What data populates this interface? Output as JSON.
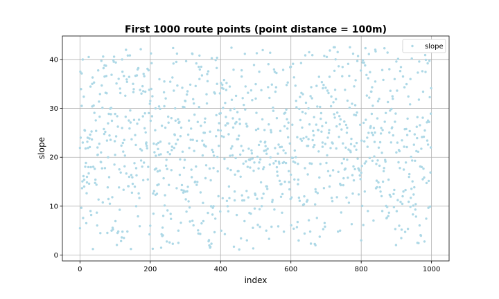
{
  "chart_data": {
    "type": "scatter",
    "title": "First 1000 route points (point distance = 100m)",
    "xlabel": "index",
    "ylabel": "slope",
    "xlim": [
      -50,
      1050
    ],
    "ylim": [
      -1.2,
      44.8
    ],
    "xticks": [
      0,
      200,
      400,
      600,
      800,
      1000
    ],
    "yticks": [
      0,
      10,
      20,
      30,
      40
    ],
    "grid": true,
    "legend": {
      "placement": "top-right",
      "entries": [
        "slope"
      ]
    },
    "series": [
      {
        "name": "slope",
        "color": "#add8e6",
        "n_points": 1000,
        "y_min": 1.0,
        "y_max": 42.5,
        "sample_points": [
          [
            0,
            5.5
          ],
          [
            5,
            30.5
          ],
          [
            8,
            23
          ],
          [
            12,
            14
          ],
          [
            20,
            16
          ],
          [
            25,
            40.5
          ],
          [
            30,
            9
          ],
          [
            35,
            35
          ],
          [
            50,
            22
          ],
          [
            60,
            21
          ],
          [
            70,
            36.5
          ],
          [
            80,
            20
          ],
          [
            90,
            5
          ],
          [
            100,
            20.5
          ],
          [
            120,
            40
          ],
          [
            121,
            37.5
          ],
          [
            125,
            3.5
          ],
          [
            140,
            16
          ],
          [
            160,
            10
          ],
          [
            180,
            33.5
          ],
          [
            200,
            6
          ],
          [
            215,
            30
          ],
          [
            225,
            20.5
          ],
          [
            240,
            35.5
          ],
          [
            260,
            28
          ],
          [
            280,
            5
          ],
          [
            300,
            31.5
          ],
          [
            320,
            7
          ],
          [
            340,
            36
          ],
          [
            355,
            25
          ],
          [
            370,
            1.5
          ],
          [
            380,
            10
          ],
          [
            390,
            35
          ],
          [
            400,
            29
          ],
          [
            420,
            10
          ],
          [
            440,
            13
          ],
          [
            460,
            36.5
          ],
          [
            475,
            3
          ],
          [
            500,
            32
          ],
          [
            510,
            37.5
          ],
          [
            530,
            5
          ],
          [
            560,
            28
          ],
          [
            580,
            19
          ],
          [
            600,
            38.5
          ],
          [
            620,
            14.5
          ],
          [
            650,
            30
          ],
          [
            670,
            2
          ],
          [
            690,
            23
          ],
          [
            710,
            14
          ],
          [
            725,
            42.5
          ],
          [
            740,
            5
          ],
          [
            760,
            19.5
          ],
          [
            780,
            34.5
          ],
          [
            800,
            3
          ],
          [
            810,
            13
          ],
          [
            830,
            25
          ],
          [
            840,
            42
          ],
          [
            860,
            9
          ],
          [
            880,
            38
          ],
          [
            900,
            21
          ],
          [
            920,
            13
          ],
          [
            940,
            36
          ],
          [
            960,
            2.5
          ],
          [
            975,
            15.5
          ],
          [
            990,
            27.5
          ],
          [
            998,
            22
          ]
        ]
      }
    ]
  }
}
